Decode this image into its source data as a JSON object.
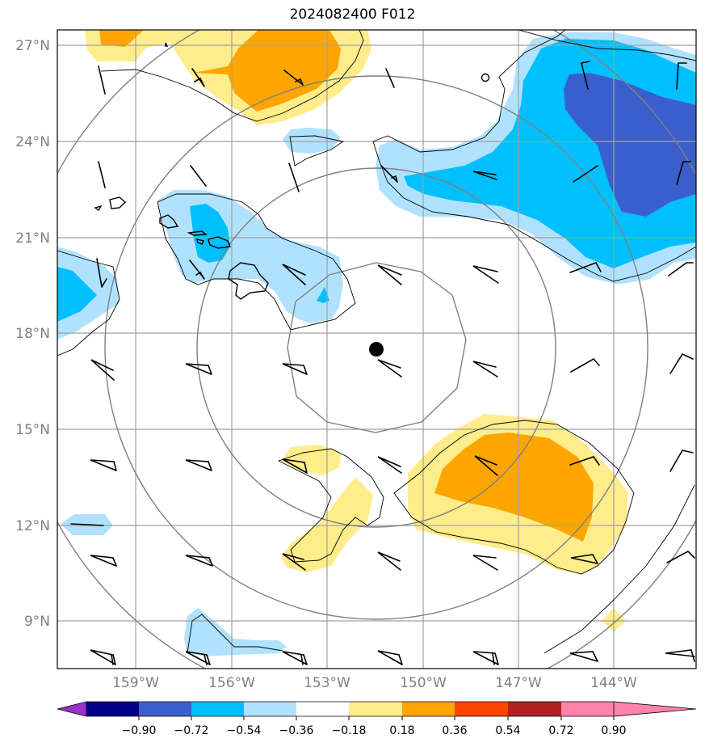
{
  "title": "2024082400 F012",
  "latitude_labels": [
    "27°N",
    "24°N",
    "21°N",
    "18°N",
    "15°N",
    "12°N",
    "9°N"
  ],
  "longitude_labels": [
    "159°W",
    "156°W",
    "153°W",
    "150°W",
    "147°W",
    "144°W"
  ],
  "colorbar": {
    "colors": [
      "#9932cc",
      "#00008b",
      "#3a5fcd",
      "#00bfff",
      "#b0e2ff",
      "#ffffff",
      "#ffec8b",
      "#ffa500",
      "#ff4500",
      "#b22222",
      "#ff82ab"
    ],
    "labels": [
      "−0.90",
      "−0.72",
      "−0.54",
      "−0.36",
      "−0.18",
      "0.18",
      "0.36",
      "0.54",
      "0.72",
      "0.90"
    ]
  },
  "storm_center": {
    "lat": 17.5,
    "lon": -151.3
  },
  "colors": {
    "gridline": "#a0a0a0",
    "range_ring": "#808080",
    "contour": "#000000",
    "coastline": "#000000"
  }
}
